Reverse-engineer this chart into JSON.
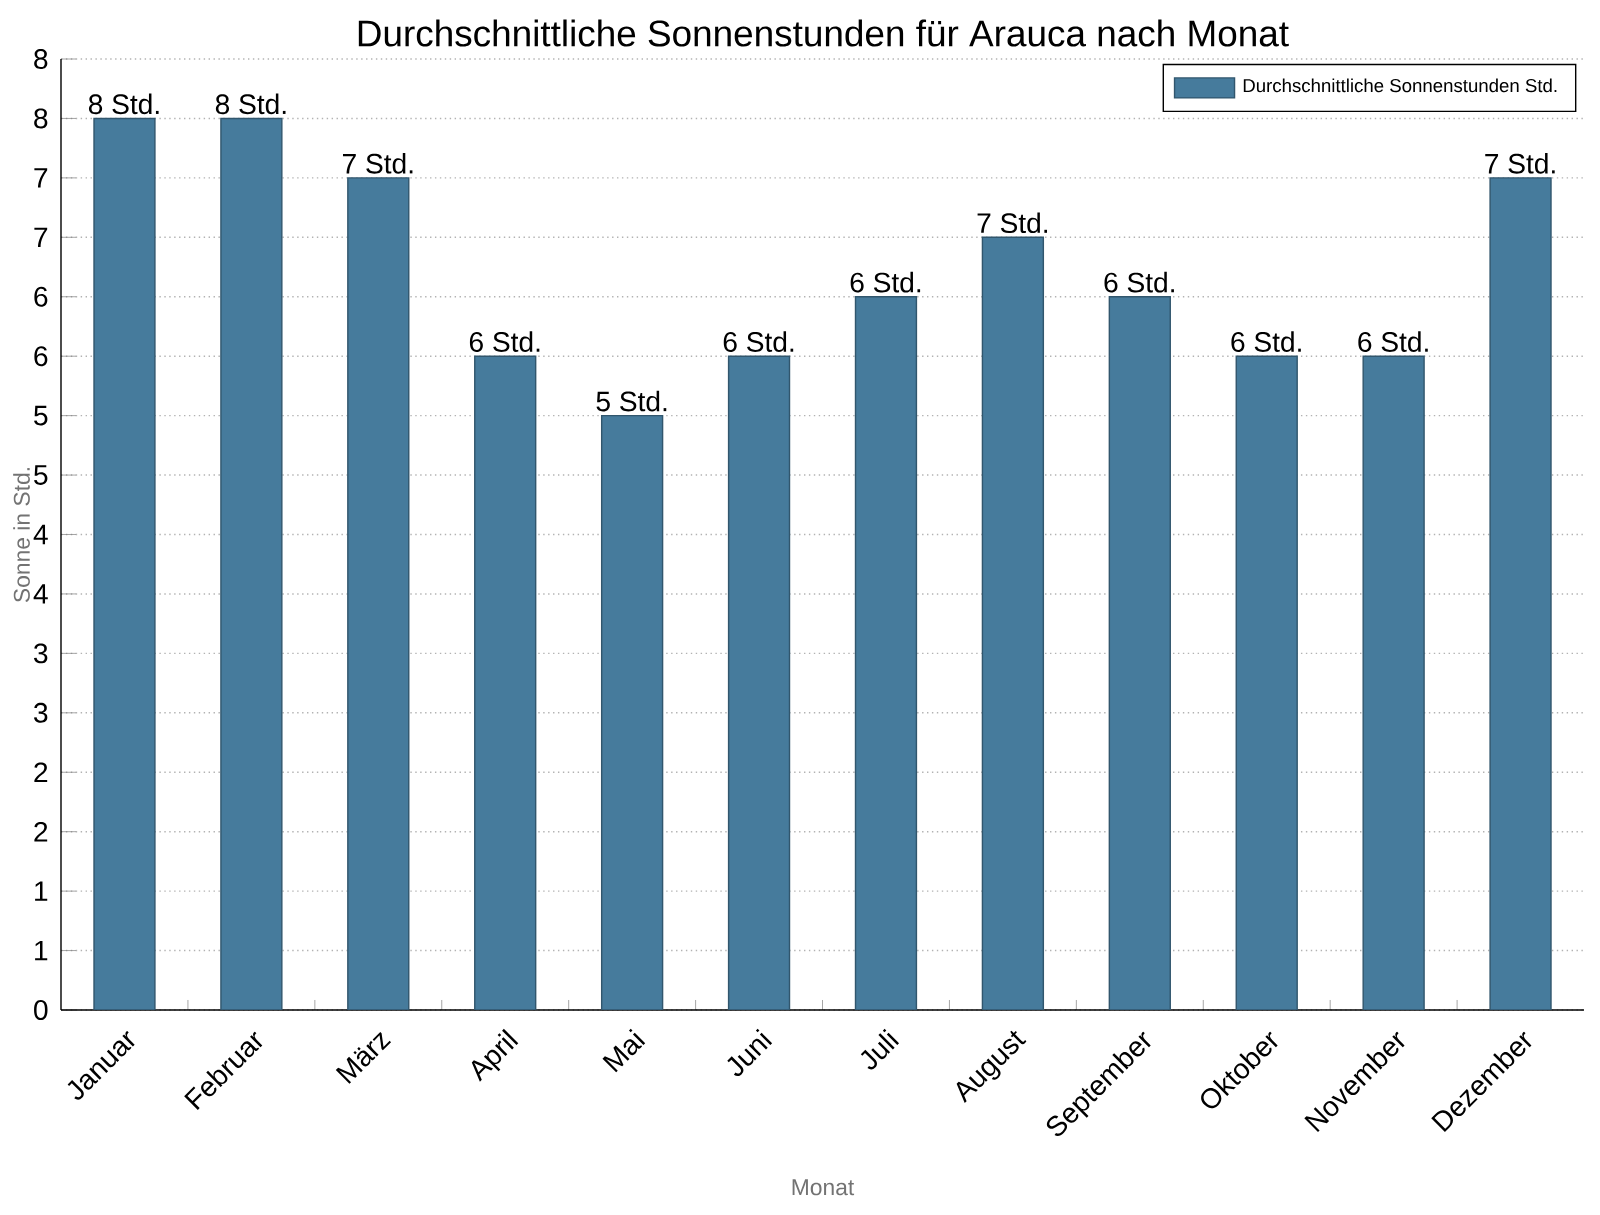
{
  "chart_data": {
    "type": "bar",
    "title": "Durchschnittliche Sonnenstunden für Arauca nach Monat",
    "xlabel": "Monat",
    "ylabel": "Sonne in Std.",
    "categories": [
      "Januar",
      "Februar",
      "März",
      "April",
      "Mai",
      "Juni",
      "Juli",
      "August",
      "September",
      "Oktober",
      "November",
      "Dezember"
    ],
    "series": [
      {
        "name": "Durchschnittliche Sonnenstunden Std.",
        "color": "#467b9c",
        "values": [
          7.5,
          7.5,
          7.0,
          5.5,
          5.0,
          5.5,
          6.0,
          6.5,
          6.0,
          5.5,
          5.5,
          7.0
        ],
        "value_labels": [
          "8 Std.",
          "8 Std.",
          "7 Std.",
          "6 Std.",
          "5 Std.",
          "6 Std.",
          "6 Std.",
          "7 Std.",
          "6 Std.",
          "6 Std.",
          "6 Std.",
          "7 Std."
        ]
      }
    ],
    "ylim": [
      0,
      8
    ],
    "yticks": [
      0,
      {
        "value": 0.5,
        "label": "1"
      },
      1,
      {
        "value": 1.5,
        "label": "2"
      },
      2,
      {
        "value": 2.5,
        "label": "3"
      },
      3,
      {
        "value": 3.5,
        "label": "4"
      },
      4,
      {
        "value": 4.5,
        "label": "5"
      },
      5,
      {
        "value": 5.5,
        "label": "6"
      },
      6,
      {
        "value": 6.5,
        "label": "7"
      },
      7,
      {
        "value": 7.5,
        "label": "8"
      },
      8
    ],
    "grid": "y",
    "legend": "top right"
  }
}
